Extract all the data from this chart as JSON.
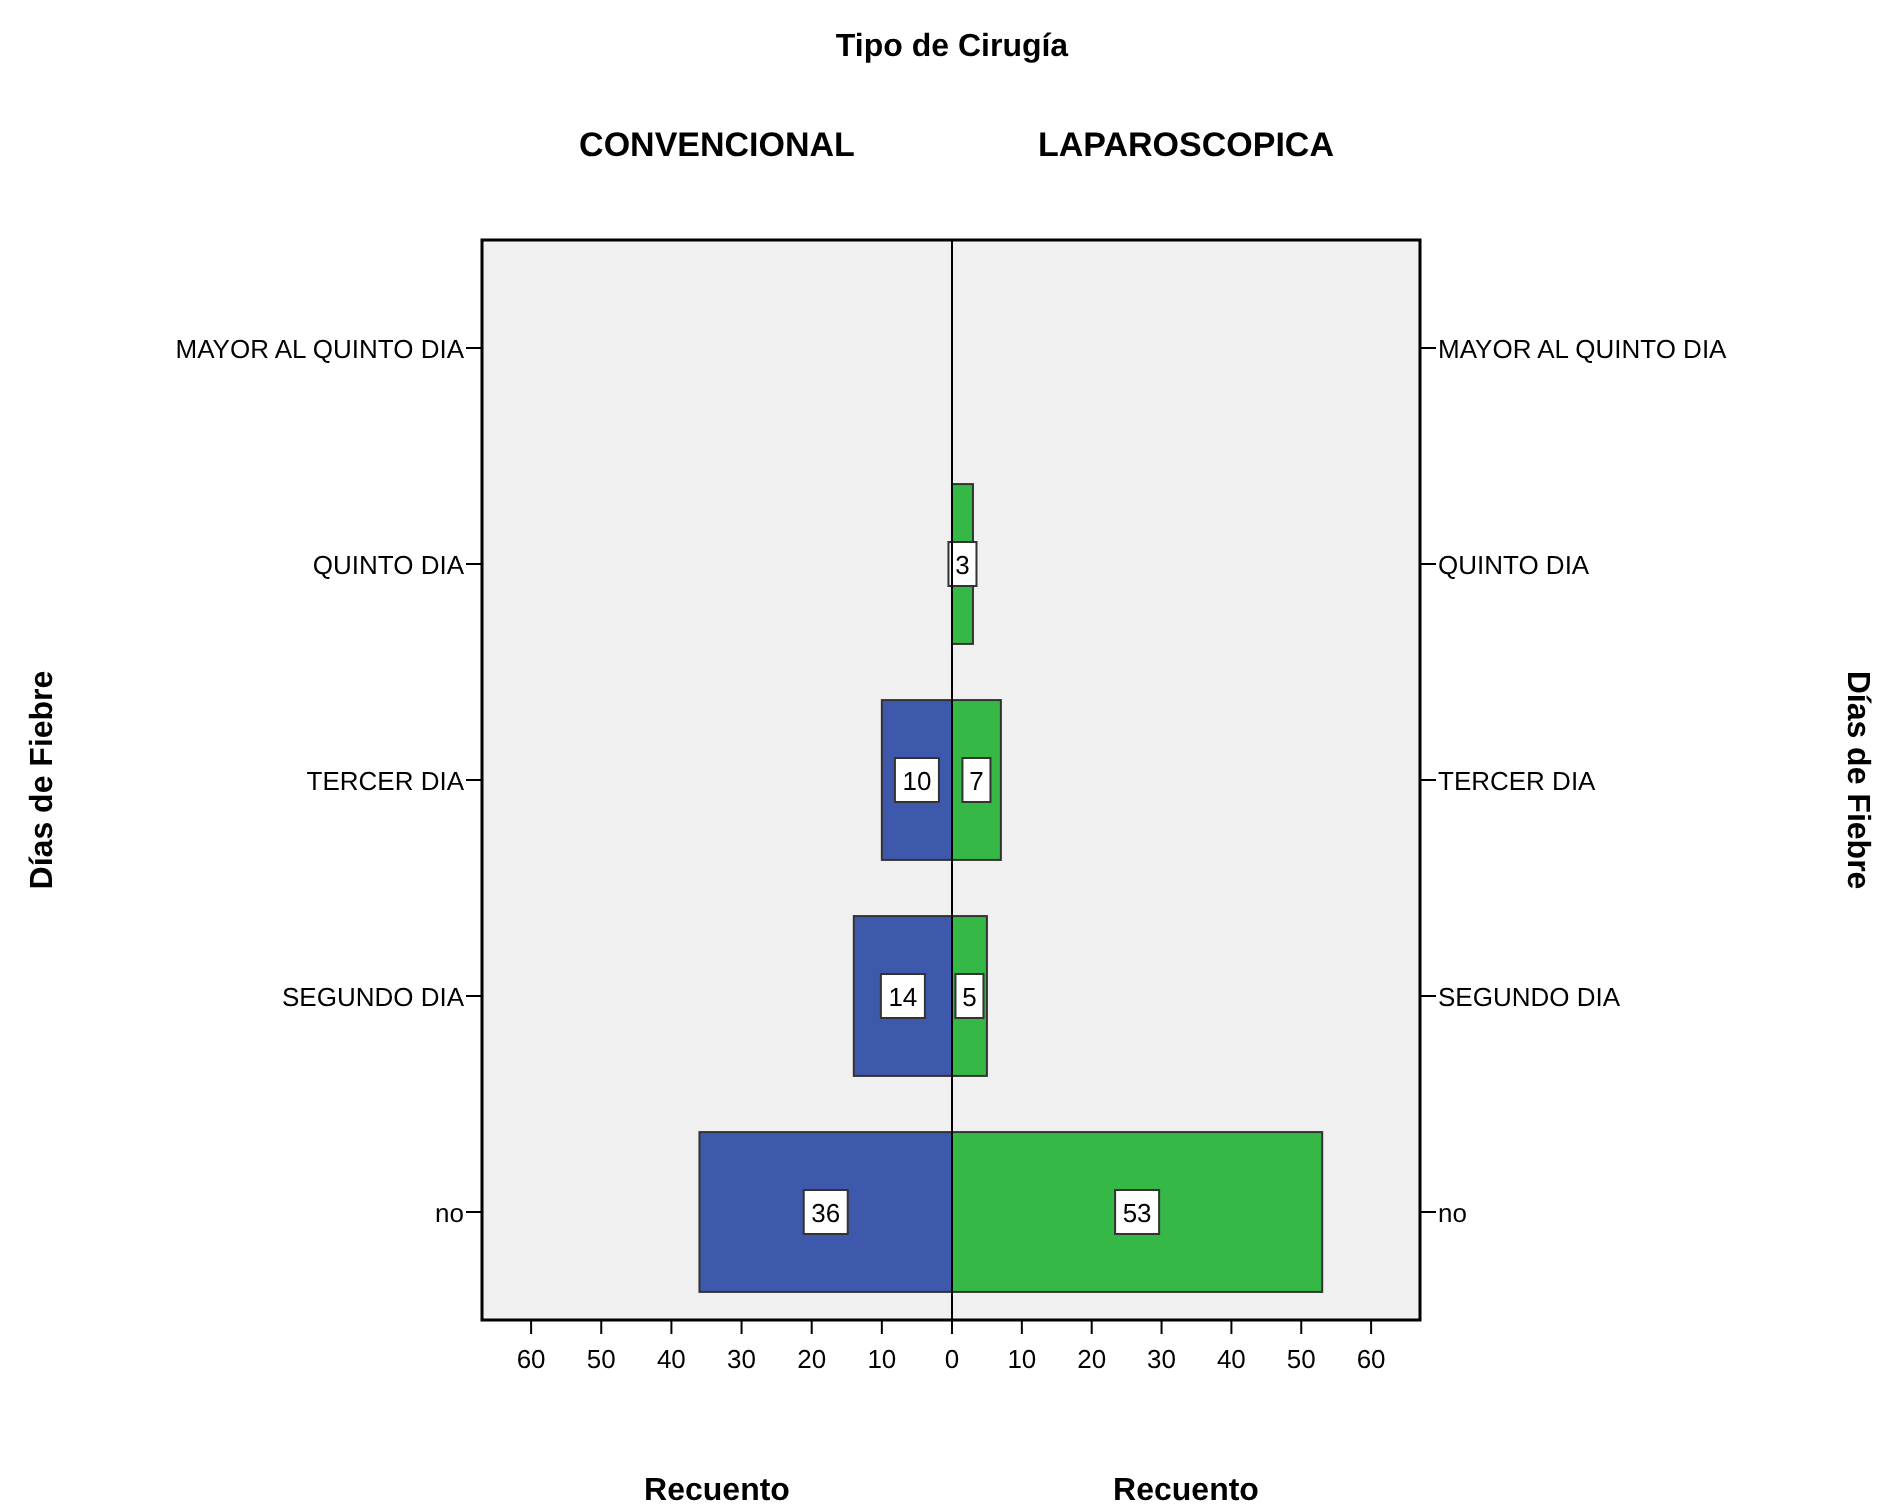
{
  "chart_data": [
    {
      "type": "bar",
      "orientation": "horizontal",
      "title": "Tipo de Cirugía",
      "subtitle": "CONVENCIONAL",
      "xlabel": "Recuento",
      "ylabel": "Días de Fiebre",
      "categories": [
        "MAYOR AL QUINTO DIA",
        "QUINTO DIA",
        "TERCER DIA",
        "SEGUNDO DIA",
        "no"
      ],
      "values": [
        null,
        null,
        10,
        14,
        36
      ],
      "color": "#3e58ac",
      "xlim": [
        67,
        0
      ],
      "xticks": [
        60,
        50,
        40,
        30,
        20,
        10,
        0
      ],
      "data_labels": true,
      "grid": false
    },
    {
      "type": "bar",
      "orientation": "horizontal",
      "subtitle": "LAPAROSCOPICA",
      "xlabel": "Recuento",
      "ylabel": "Días de Fiebre",
      "categories": [
        "MAYOR AL QUINTO DIA",
        "QUINTO DIA",
        "TERCER DIA",
        "SEGUNDO DIA",
        "no"
      ],
      "values": [
        null,
        3,
        7,
        5,
        53
      ],
      "color": "#35b846",
      "xlim": [
        0,
        67
      ],
      "xticks": [
        {
          "value": 0,
          "label": null
        },
        10,
        20,
        30,
        40,
        50,
        60
      ],
      "data_labels": true,
      "grid": false
    }
  ]
}
